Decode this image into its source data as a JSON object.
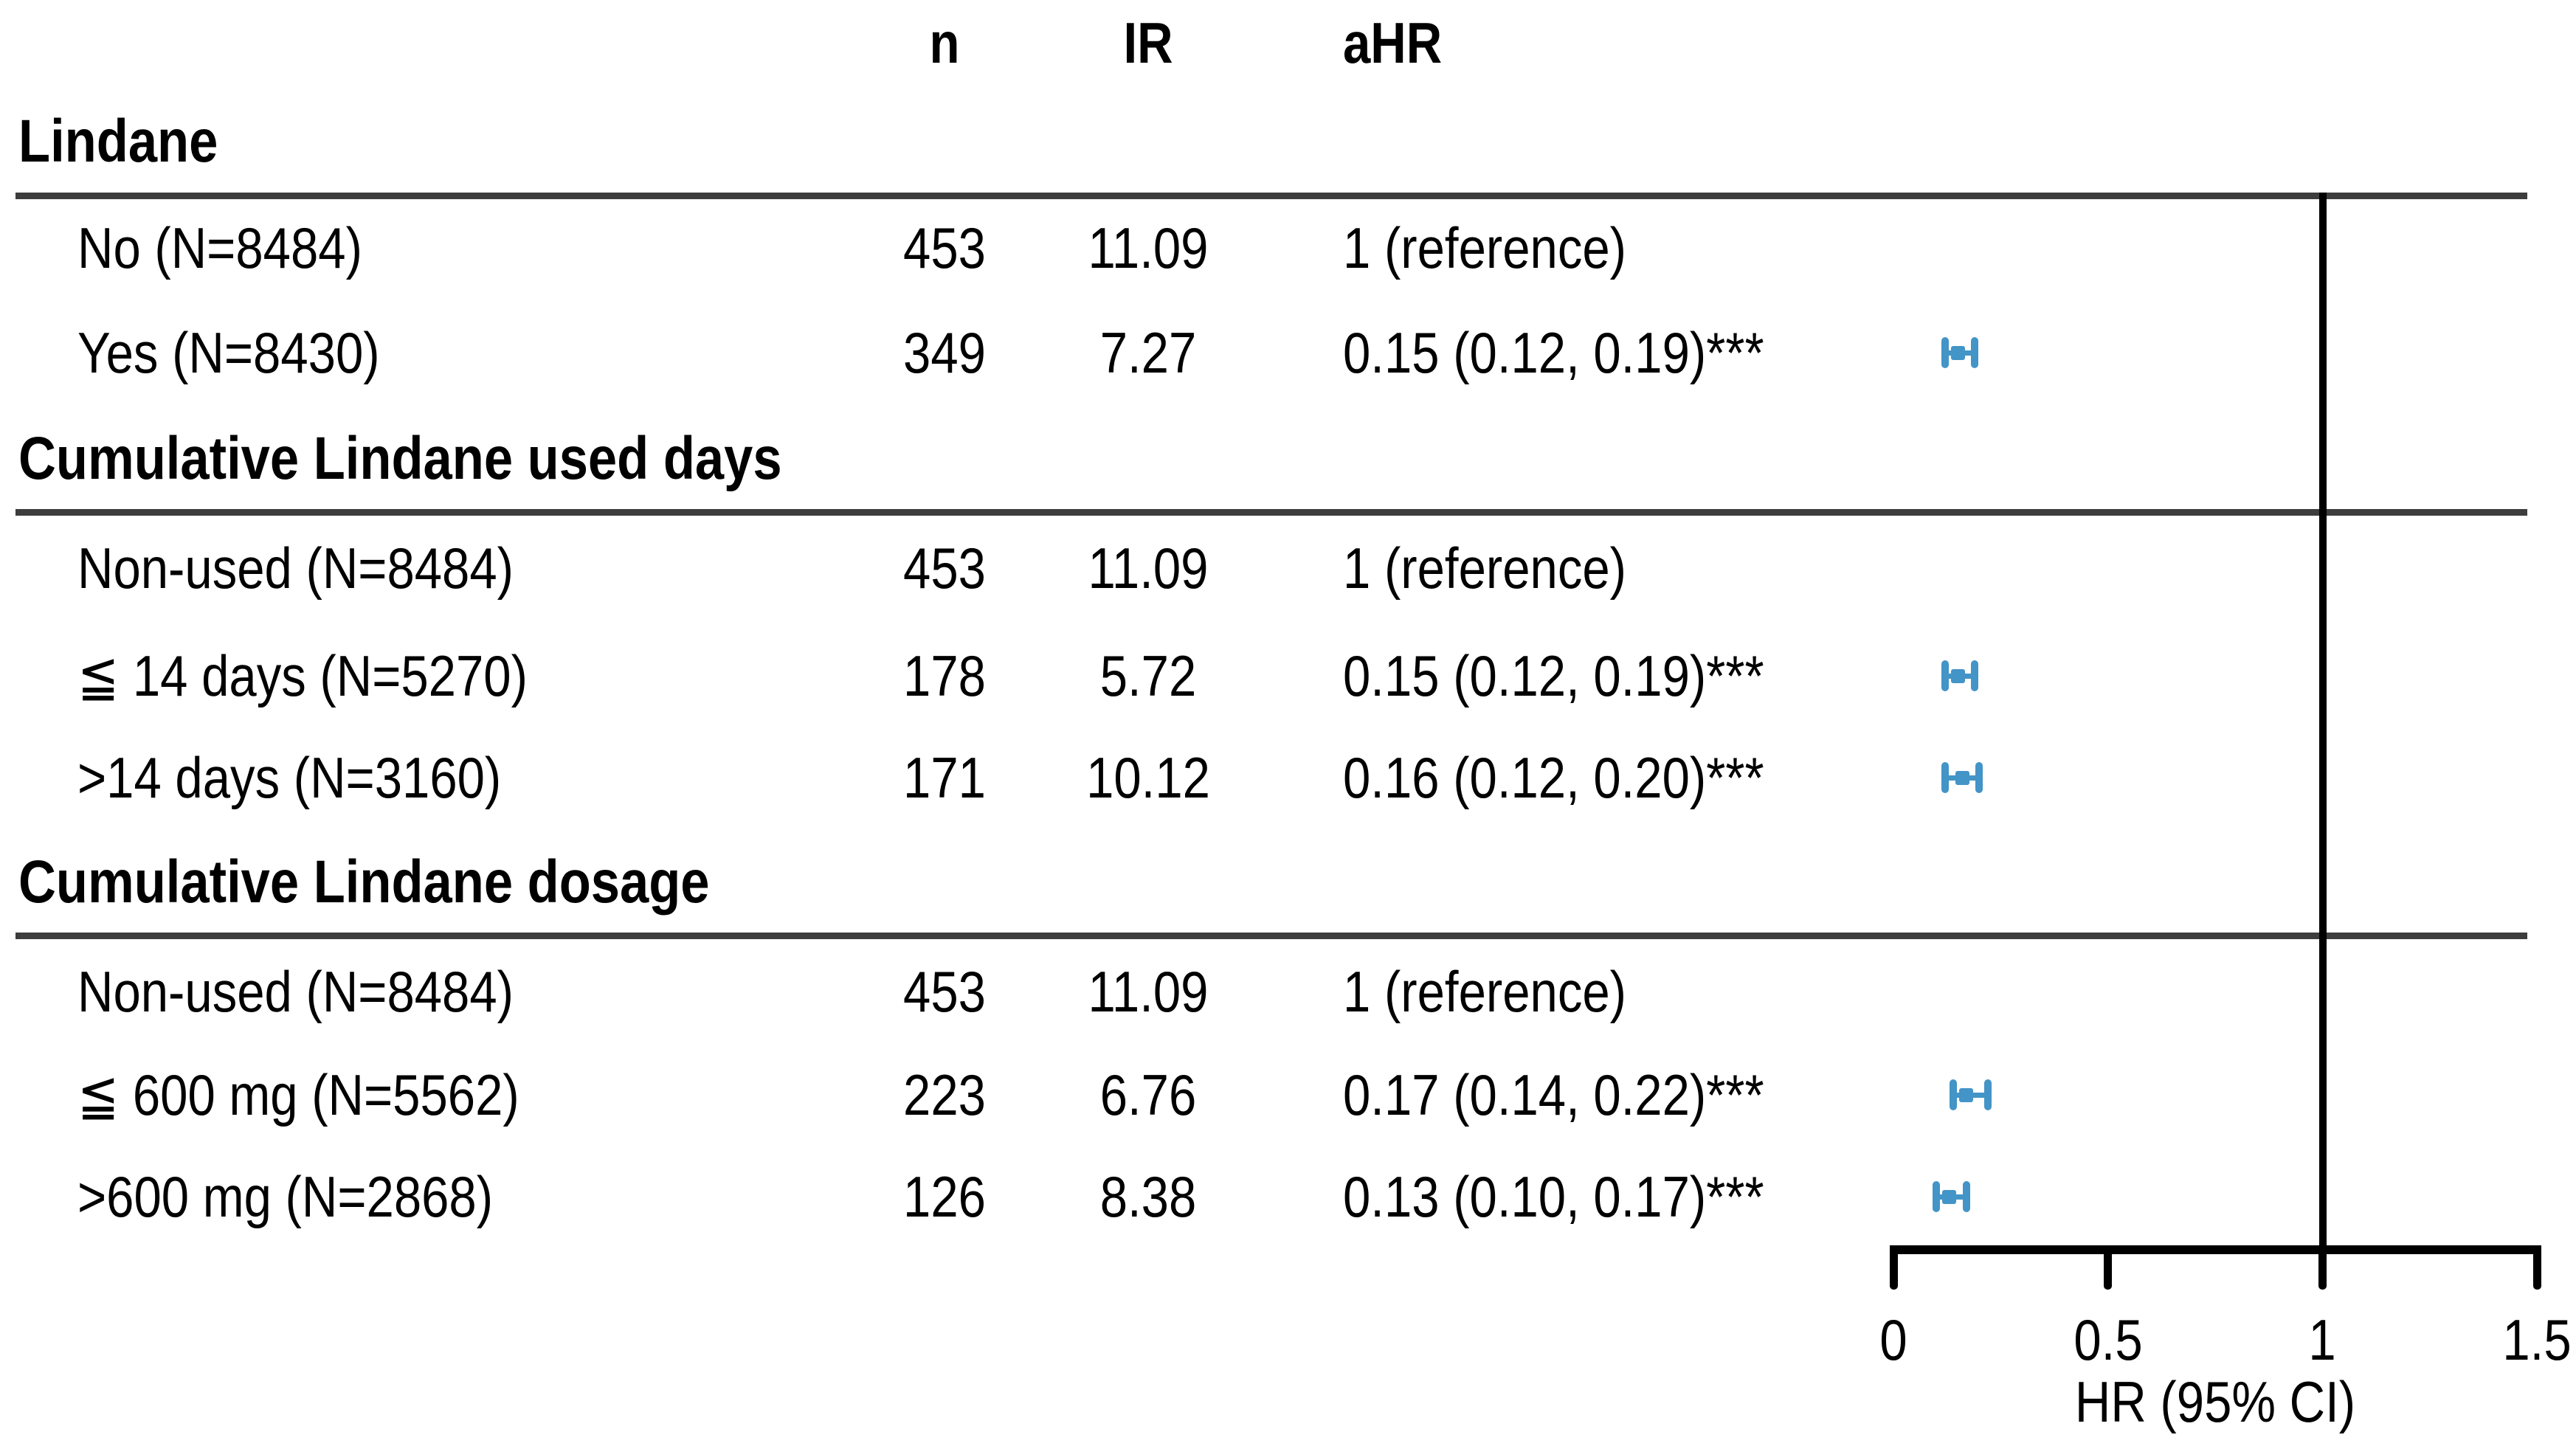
{
  "chart_data": {
    "type": "forest",
    "column_headers": {
      "n": "n",
      "ir": "IR",
      "ahr": "aHR"
    },
    "xlabel": "HR (95% CI)",
    "x_axis": {
      "tick_values": [
        0,
        0.5,
        1,
        1.5
      ],
      "tick_labels": [
        "0",
        "0.5",
        "1",
        "1.5"
      ],
      "xlim": [
        0,
        1.5
      ],
      "reference_line": 1
    },
    "marker_color": "#4394C7",
    "divider_color": "#3d3d3d",
    "sections": [
      {
        "title": "Lindane",
        "rows": [
          {
            "label": "No (N=8484)",
            "n": "453",
            "ir": "11.09",
            "ahr": "1 (reference)",
            "hr": null,
            "lo": null,
            "hi": null
          },
          {
            "label": "Yes (N=8430)",
            "n": "349",
            "ir": "7.27",
            "ahr": "0.15 (0.12, 0.19)***",
            "hr": 0.15,
            "lo": 0.12,
            "hi": 0.19
          }
        ]
      },
      {
        "title": "Cumulative Lindane used days",
        "rows": [
          {
            "label": "Non-used (N=8484)",
            "n": "453",
            "ir": "11.09",
            "ahr": "1 (reference)",
            "hr": null,
            "lo": null,
            "hi": null
          },
          {
            "label": "≦ 14 days (N=5270)",
            "n": "178",
            "ir": "5.72",
            "ahr": "0.15 (0.12, 0.19)***",
            "hr": 0.15,
            "lo": 0.12,
            "hi": 0.19
          },
          {
            "label": ">14 days (N=3160)",
            "n": "171",
            "ir": "10.12",
            "ahr": "0.16 (0.12, 0.20)***",
            "hr": 0.16,
            "lo": 0.12,
            "hi": 0.2
          }
        ]
      },
      {
        "title": "Cumulative Lindane dosage",
        "rows": [
          {
            "label": "Non-used (N=8484)",
            "n": "453",
            "ir": "11.09",
            "ahr": "1 (reference)",
            "hr": null,
            "lo": null,
            "hi": null
          },
          {
            "label": "≦ 600 mg (N=5562)",
            "n": "223",
            "ir": "6.76",
            "ahr": "0.17 (0.14, 0.22)***",
            "hr": 0.17,
            "lo": 0.14,
            "hi": 0.22
          },
          {
            "label": ">600 mg (N=2868)",
            "n": "126",
            "ir": "8.38",
            "ahr": "0.13 (0.10, 0.17)***",
            "hr": 0.13,
            "lo": 0.1,
            "hi": 0.17
          }
        ]
      }
    ]
  }
}
